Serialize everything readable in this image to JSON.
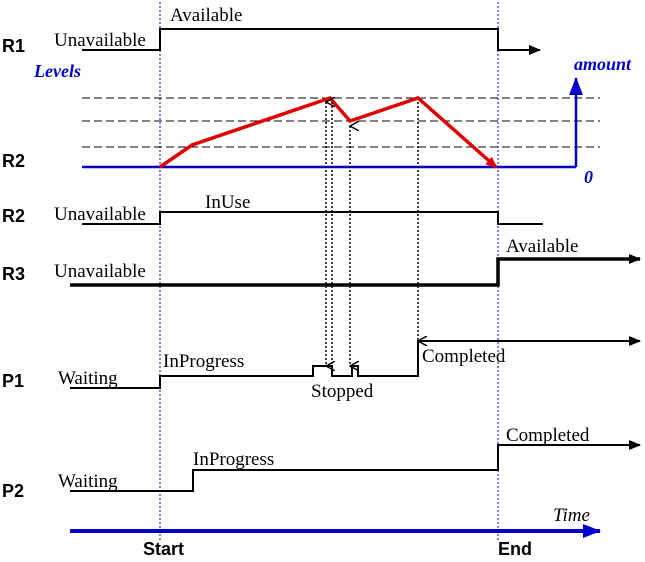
{
  "rows": {
    "r1": "R1",
    "r2_levels": "R2",
    "r2_state": "R2",
    "r3": "R3",
    "p1": "P1",
    "p2": "P2"
  },
  "r1": {
    "before": "Unavailable",
    "after": "Available"
  },
  "levels": {
    "label": "Levels",
    "axis_label": "amount",
    "zero": "0"
  },
  "r2": {
    "before": "Unavailable",
    "after": "InUse"
  },
  "r3": {
    "before": "Unavailable",
    "after": "Available"
  },
  "p1": {
    "before": "Waiting",
    "during": "InProgress",
    "paused": "Stopped",
    "after": "Completed"
  },
  "p2": {
    "before": "Waiting",
    "during": "InProgress",
    "after": "Completed"
  },
  "axis": {
    "time": "Time",
    "start": "Start",
    "end": "End"
  },
  "colors": {
    "signal": "#000000",
    "timeline": "#0000cc",
    "level_curve": "#e00000",
    "guide": "#0000cc"
  }
}
